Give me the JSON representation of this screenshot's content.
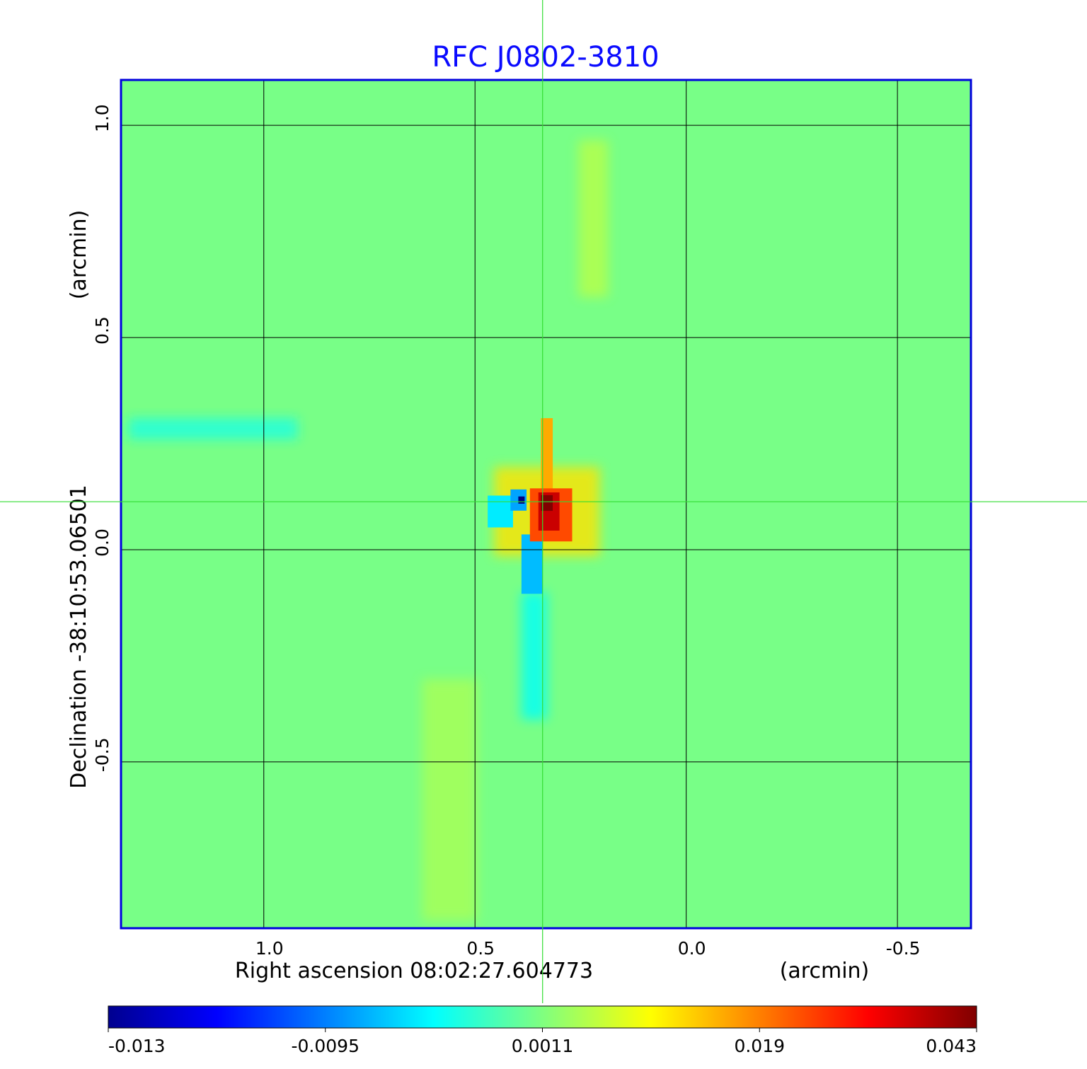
{
  "chart_data": {
    "type": "heatmap",
    "title": "RFC J0802-3810",
    "xlabel": "Right ascension  08:02:27.604773",
    "xunit": "(arcmin)",
    "ylabel": "Declination  -38:10:53.06501",
    "yunit": "(arcmin)",
    "xlim": [
      1.338,
      -0.674
    ],
    "ylim": [
      -0.892,
      1.107
    ],
    "xticks": [
      1.0,
      0.5,
      0.0,
      -0.5
    ],
    "xtick_labels": [
      "1.0",
      "0.5",
      "0.0",
      "-0.5"
    ],
    "yticks": [
      1.0,
      0.5,
      0.0,
      -0.5
    ],
    "ytick_labels": [
      "1.0",
      "0.5",
      "0.0",
      "-0.5"
    ],
    "grid": true,
    "crosshair": {
      "ra": 0.34,
      "dec": 0.113
    },
    "background_value": 0.0008,
    "colorbar": {
      "colormap": "jet",
      "ticks": [
        -0.013,
        -0.0095,
        0.0011,
        0.019,
        0.043
      ],
      "tick_labels": [
        "-0.013",
        "-0.0095",
        "0.0011",
        "0.019",
        "0.043"
      ],
      "placement": "bottom"
    },
    "features": [
      {
        "ra": 1.12,
        "dec": 0.285,
        "w": 0.4,
        "h": 0.05,
        "value": -0.003,
        "soft": true
      },
      {
        "ra": 0.22,
        "dec": 0.78,
        "w": 0.07,
        "h": 0.37,
        "value": 0.005,
        "soft": true
      },
      {
        "ra": 0.56,
        "dec": -0.59,
        "w": 0.13,
        "h": 0.57,
        "value": 0.004,
        "soft": true
      },
      {
        "ra": 0.36,
        "dec": -0.25,
        "w": 0.06,
        "h": 0.3,
        "value": -0.004,
        "soft": true
      },
      {
        "ra": 0.33,
        "dec": 0.09,
        "w": 0.25,
        "h": 0.21,
        "value": 0.012,
        "soft": true
      },
      {
        "ra": 0.33,
        "dec": 0.22,
        "w": 0.028,
        "h": 0.18,
        "value": 0.016,
        "soft": false
      },
      {
        "ra": 0.365,
        "dec": -0.034,
        "w": 0.05,
        "h": 0.14,
        "value": -0.007,
        "soft": false
      },
      {
        "ra": 0.44,
        "dec": 0.09,
        "w": 0.06,
        "h": 0.075,
        "value": -0.005,
        "soft": false
      },
      {
        "ra": 0.397,
        "dec": 0.117,
        "w": 0.038,
        "h": 0.05,
        "value": -0.008,
        "soft": false
      },
      {
        "ra": 0.39,
        "dec": 0.117,
        "w": 0.015,
        "h": 0.017,
        "value": -0.013,
        "soft": false
      },
      {
        "ra": 0.32,
        "dec": 0.082,
        "w": 0.1,
        "h": 0.125,
        "value": 0.024,
        "soft": false
      },
      {
        "ra": 0.325,
        "dec": 0.09,
        "w": 0.05,
        "h": 0.09,
        "value": 0.036,
        "soft": false
      },
      {
        "ra": 0.33,
        "dec": 0.11,
        "w": 0.028,
        "h": 0.037,
        "value": 0.043,
        "soft": false
      }
    ]
  }
}
